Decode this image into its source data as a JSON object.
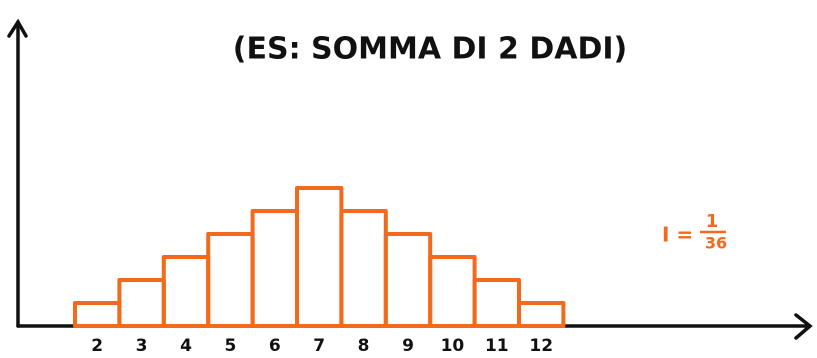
{
  "chart_data": {
    "type": "bar",
    "title": "(ES: SOMMA DI 2 DADI)",
    "categories": [
      "2",
      "3",
      "4",
      "5",
      "6",
      "7",
      "8",
      "9",
      "10",
      "11",
      "12"
    ],
    "values": [
      1,
      2,
      3,
      4,
      5,
      6,
      5,
      4,
      3,
      2,
      1
    ],
    "color": "#f26a1b",
    "annotation": {
      "lhs": "I =",
      "numerator": "1",
      "denominator": "36"
    }
  }
}
